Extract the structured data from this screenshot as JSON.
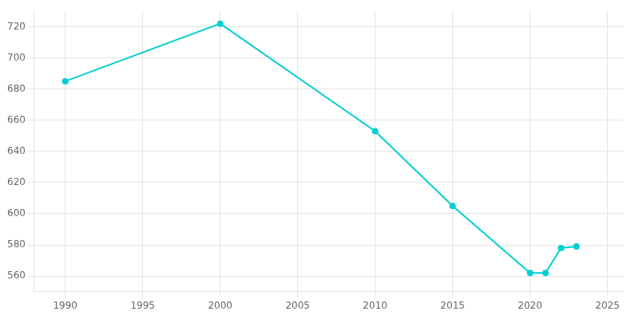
{
  "chart_data": {
    "type": "line",
    "x": [
      1990,
      2000,
      2010,
      2015,
      2020,
      2021,
      2022,
      2023
    ],
    "values": [
      685,
      722,
      653,
      605,
      562,
      562,
      578,
      579
    ],
    "color": "#00CED1",
    "marker": "circle",
    "xlim": [
      1988,
      2026
    ],
    "xticks": [
      1990,
      1995,
      2000,
      2005,
      2010,
      2015,
      2020,
      2025
    ],
    "ylim": [
      550,
      730
    ],
    "yticks": [
      560,
      580,
      600,
      620,
      640,
      660,
      680,
      700,
      720
    ],
    "grid": true
  }
}
